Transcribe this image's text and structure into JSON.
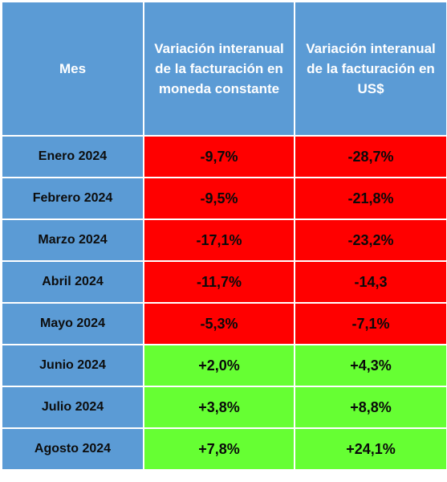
{
  "table": {
    "headers": {
      "month": "Mes",
      "constant_currency": "Variación interanual de la facturación en moneda constante",
      "usd": "Variación interanual de la facturación en US$"
    },
    "rows": [
      {
        "month": "Enero 2024",
        "constant": "-9,7%",
        "usd": "-28,7%",
        "status": "negative"
      },
      {
        "month": "Febrero 2024",
        "constant": "-9,5%",
        "usd": "-21,8%",
        "status": "negative"
      },
      {
        "month": "Marzo 2024",
        "constant": "-17,1%",
        "usd": "-23,2%",
        "status": "negative"
      },
      {
        "month": "Abril 2024",
        "constant": "-11,7%",
        "usd": "-14,3",
        "status": "negative"
      },
      {
        "month": "Mayo 2024",
        "constant": "-5,3%",
        "usd": "-7,1%",
        "status": "negative"
      },
      {
        "month": "Junio 2024",
        "constant": "+2,0%",
        "usd": "+4,3%",
        "status": "positive"
      },
      {
        "month": "Julio 2024",
        "constant": "+3,8%",
        "usd": "+8,8%",
        "status": "positive"
      },
      {
        "month": "Agosto 2024",
        "constant": "+7,8%",
        "usd": "+24,1%",
        "status": "positive"
      }
    ]
  },
  "colors": {
    "header_blue": "#5b9bd5",
    "negative_red": "#ff0000",
    "positive_green": "#66ff33"
  }
}
